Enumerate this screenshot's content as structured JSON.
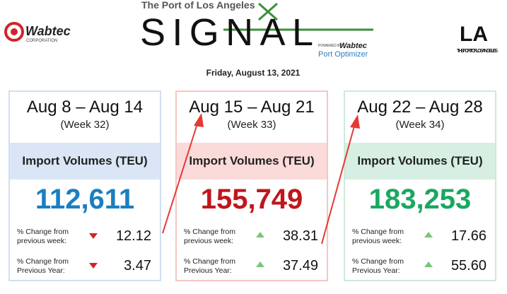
{
  "header": {
    "left_logo": {
      "name": "Wabtec",
      "sub": "CORPORATION"
    },
    "signal": {
      "top": "The Port of Los Angeles",
      "title": "SIGNAL",
      "powered": "POWERED BY",
      "brand": "Wabtec",
      "product": "Port Optimizer"
    },
    "right_logo": {
      "mark": "LA",
      "text": "THE PORT OF LOS ANGELES"
    },
    "date": "Friday, August 13, 2021"
  },
  "cards": [
    {
      "range": "Aug 8 – Aug 14",
      "week": "(Week 32)",
      "label": "Import Volumes (TEU)",
      "volume": "112,611",
      "changes": [
        {
          "label": "% Change from previous week:",
          "direction": "down",
          "value": "12.12"
        },
        {
          "label": "% Change from Previous Year:",
          "direction": "down",
          "value": "3.47"
        }
      ]
    },
    {
      "range": "Aug 15 – Aug 21",
      "week": "(Week 33)",
      "label": "Import Volumes (TEU)",
      "volume": "155,749",
      "changes": [
        {
          "label": "% Change from previous week:",
          "direction": "up",
          "value": "38.31"
        },
        {
          "label": "% Change from Previous Year:",
          "direction": "up",
          "value": "37.49"
        }
      ]
    },
    {
      "range": "Aug 22 – Aug 28",
      "week": "(Week 34)",
      "label": "Import Volumes (TEU)",
      "volume": "183,253",
      "changes": [
        {
          "label": "% Change from previous week:",
          "direction": "up",
          "value": "17.66"
        },
        {
          "label": "% Change from Previous Year:",
          "direction": "up",
          "value": "55.60"
        }
      ]
    }
  ]
}
